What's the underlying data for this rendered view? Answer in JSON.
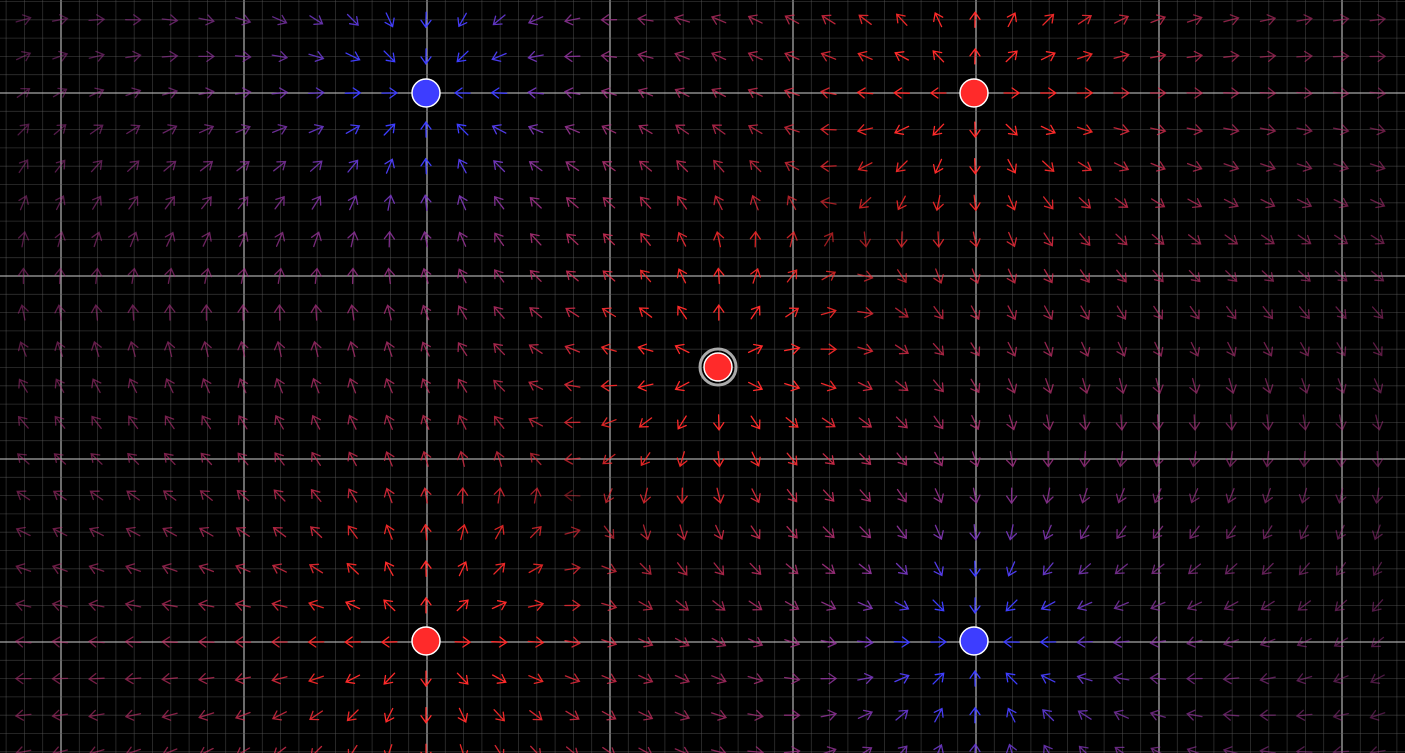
{
  "simulation": {
    "grid": {
      "minor_color": "#5a5a5a",
      "major_color": "#b8b8b8"
    },
    "colors": {
      "background": "#000000",
      "positive": "#ff2a2a",
      "negative": "#3d3dff",
      "charge_outline": "#ffffff",
      "selected_ring": "#aaaaaa"
    },
    "charges": [
      {
        "sign": "negative",
        "q": -1,
        "selected": false
      },
      {
        "sign": "positive",
        "q": 1,
        "selected": false
      },
      {
        "sign": "positive",
        "q": 1,
        "selected": true
      },
      {
        "sign": "positive",
        "q": 1,
        "selected": false
      },
      {
        "sign": "negative",
        "q": -1,
        "selected": false
      }
    ]
  }
}
